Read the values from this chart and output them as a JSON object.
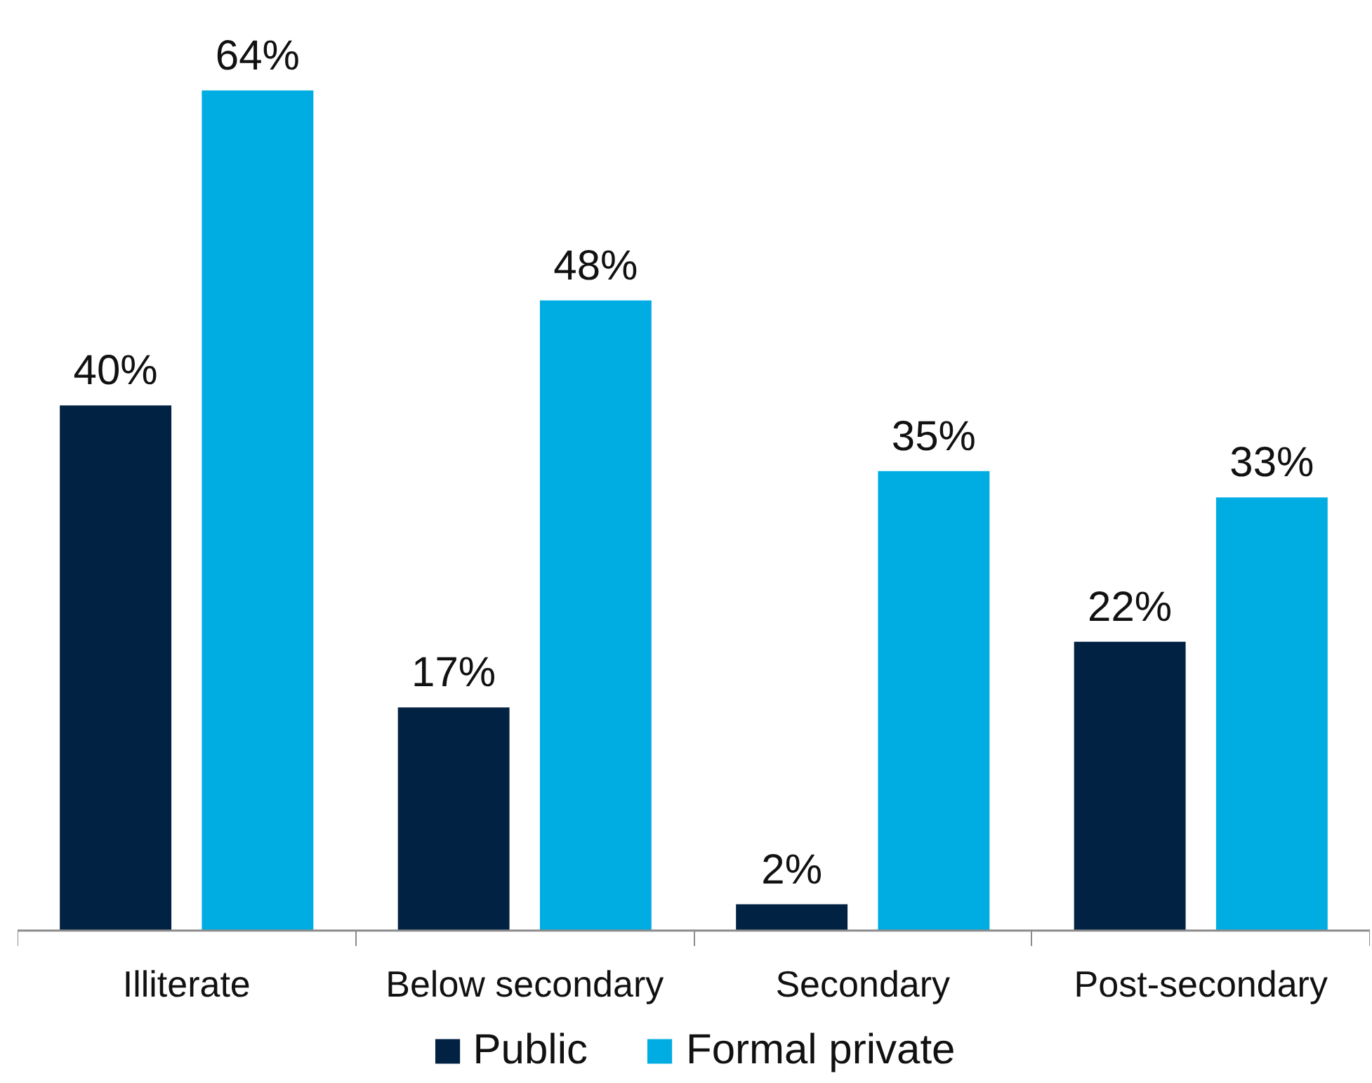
{
  "chart_data": {
    "type": "bar",
    "categories": [
      "Illiterate",
      "Below secondary",
      "Secondary",
      "Post-secondary"
    ],
    "series": [
      {
        "name": "Public",
        "color": "#022243",
        "values": [
          40,
          17,
          2,
          22
        ],
        "value_labels": [
          "40%",
          "17%",
          "2%",
          "22%"
        ]
      },
      {
        "name": "Formal private",
        "color": "#00ade3",
        "values": [
          64,
          48,
          35,
          33
        ],
        "value_labels": [
          "64%",
          "48%",
          "35%",
          "33%"
        ]
      }
    ],
    "legend": "bottom",
    "tick_labels": "x"
  }
}
